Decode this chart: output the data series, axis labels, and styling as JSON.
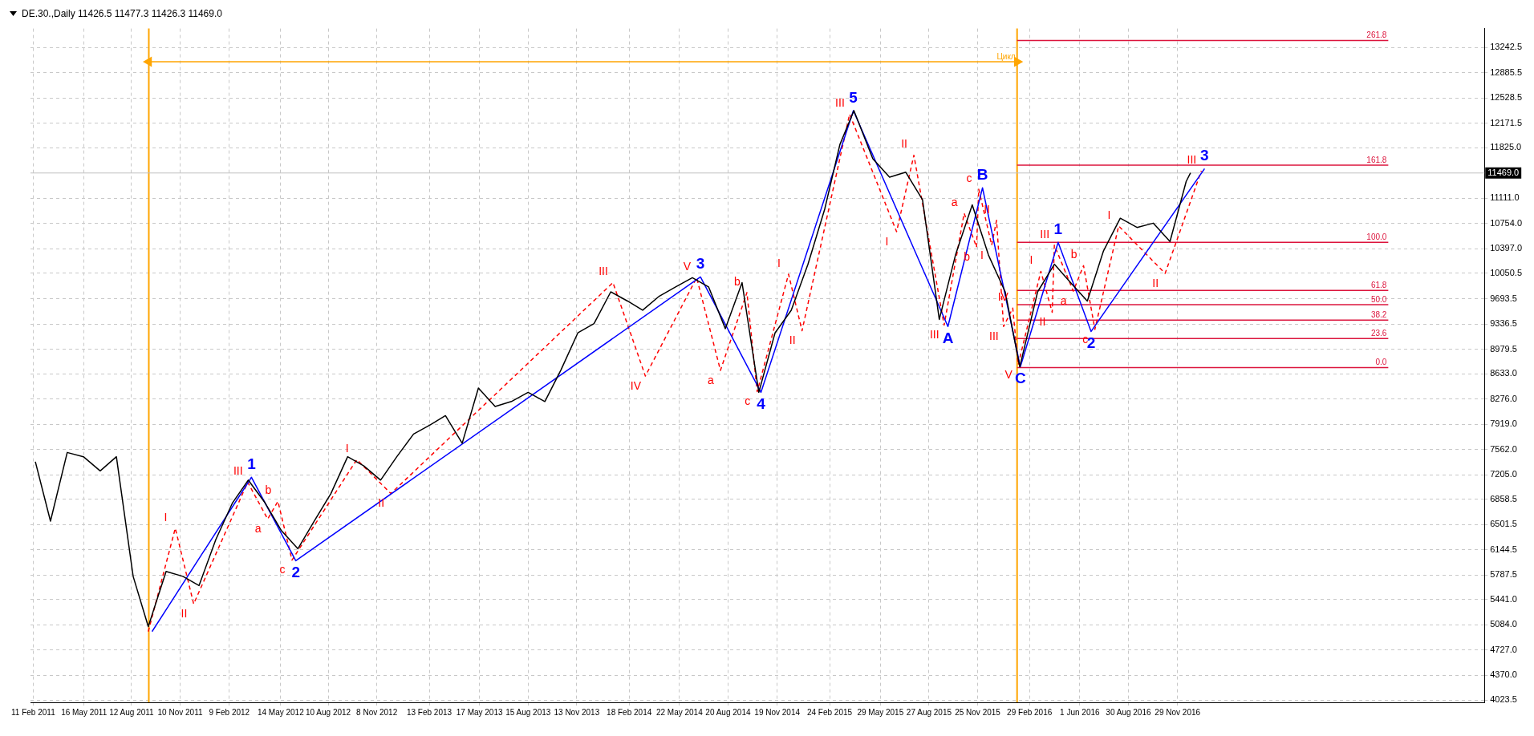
{
  "chart_data": {
    "type": "line",
    "title": "DE.30.,Daily  11426.5 11477.3 11426.3 11469.0",
    "xlim": [
      "2011-02-06",
      "2018-06-20"
    ],
    "xticks": [
      {
        "value": "2011-02-11",
        "label": "11 Feb 2011"
      },
      {
        "value": "2011-05-16",
        "label": "16 May 2011"
      },
      {
        "value": "2011-08-12",
        "label": "12 Aug 2011"
      },
      {
        "value": "2011-11-10",
        "label": "10 Nov 2011"
      },
      {
        "value": "2012-02-09",
        "label": "9 Feb 2012"
      },
      {
        "value": "2012-05-14",
        "label": "14 May 2012"
      },
      {
        "value": "2012-08-10",
        "label": "10 Aug 2012"
      },
      {
        "value": "2012-11-08",
        "label": "8 Nov 2012"
      },
      {
        "value": "2013-02-13",
        "label": "13 Feb 2013"
      },
      {
        "value": "2013-05-17",
        "label": "17 May 2013"
      },
      {
        "value": "2013-08-15",
        "label": "15 Aug 2013"
      },
      {
        "value": "2013-11-13",
        "label": "13 Nov 2013"
      },
      {
        "value": "2014-02-18",
        "label": "18 Feb 2014"
      },
      {
        "value": "2014-05-22",
        "label": "22 May 2014"
      },
      {
        "value": "2014-08-20",
        "label": "20 Aug 2014"
      },
      {
        "value": "2014-11-19",
        "label": "19 Nov 2014"
      },
      {
        "value": "2015-02-24",
        "label": "24 Feb 2015"
      },
      {
        "value": "2015-05-29",
        "label": "29 May 2015"
      },
      {
        "value": "2015-08-27",
        "label": "27 Aug 2015"
      },
      {
        "value": "2015-11-25",
        "label": "25 Nov 2015"
      },
      {
        "value": "2016-02-29",
        "label": "29 Feb 2016"
      },
      {
        "value": "2016-06-01",
        "label": "1 Jun 2016"
      },
      {
        "value": "2016-08-30",
        "label": "30 Aug 2016"
      },
      {
        "value": "2016-11-29",
        "label": "29 Nov 2016"
      }
    ],
    "ylim": [
      3990,
      13510
    ],
    "yticks": [
      13242.5,
      12885.5,
      12528.5,
      12171.5,
      {
        "value": 11825,
        "label": "11825.0"
      },
      {
        "value": 11111,
        "label": "11111.0"
      },
      {
        "value": 10754,
        "label": "10754.0"
      },
      {
        "value": 10397,
        "label": "10397.0"
      },
      10050.5,
      9693.5,
      9336.5,
      8979.5,
      {
        "value": 8633,
        "label": "8633.0"
      },
      {
        "value": 8276,
        "label": "8276.0"
      },
      {
        "value": 7919,
        "label": "7919.0"
      },
      {
        "value": 7562,
        "label": "7562.0"
      },
      {
        "value": 7205,
        "label": "7205.0"
      },
      6858.5,
      6501.5,
      6144.5,
      5787.5,
      {
        "value": 5441,
        "label": "5441.0"
      },
      {
        "value": 5084,
        "label": "5084.0"
      },
      {
        "value": 4727,
        "label": "4727.0"
      },
      {
        "value": 4370,
        "label": "4370.0"
      },
      4023.5
    ],
    "grid": true,
    "legend": false,
    "marker": "none",
    "series": [
      {
        "color": "#000000",
        "x": [
          "2011-02-15",
          "2011-03-15",
          "2011-04-15",
          "2011-05-15",
          "2011-06-15",
          "2011-07-15",
          "2011-08-15",
          "2011-09-12",
          "2011-10-15",
          "2011-11-15",
          "2011-12-15",
          "2012-01-15",
          "2012-02-15",
          "2012-03-15",
          "2012-04-15",
          "2012-05-15",
          "2012-06-15",
          "2012-07-15",
          "2012-08-15",
          "2012-09-15",
          "2012-10-15",
          "2012-11-15",
          "2012-12-15",
          "2013-01-15",
          "2013-02-15",
          "2013-03-15",
          "2013-04-15",
          "2013-05-15",
          "2013-06-15",
          "2013-07-15",
          "2013-08-15",
          "2013-09-15",
          "2013-10-15",
          "2013-11-15",
          "2013-12-15",
          "2014-01-15",
          "2014-02-15",
          "2014-03-15",
          "2014-04-15",
          "2014-05-15",
          "2014-06-15",
          "2014-07-15",
          "2014-08-15",
          "2014-09-15",
          "2014-10-16",
          "2014-11-15",
          "2014-12-15",
          "2015-01-15",
          "2015-02-15",
          "2015-03-15",
          "2015-04-10",
          "2015-05-15",
          "2015-06-15",
          "2015-07-15",
          "2015-08-15",
          "2015-09-15",
          "2015-10-15",
          "2015-11-15",
          "2015-12-15",
          "2016-01-15",
          "2016-02-11",
          "2016-03-15",
          "2016-04-15",
          "2016-05-15",
          "2016-06-15",
          "2016-07-15",
          "2016-08-15",
          "2016-09-15",
          "2016-10-15",
          "2016-11-15",
          "2016-12-15",
          "2016-12-23"
        ],
        "values": [
          7390,
          6550,
          7520,
          7460,
          7260,
          7460,
          5770,
          5060,
          5840,
          5770,
          5640,
          6290,
          6810,
          7130,
          6810,
          6420,
          6160,
          6550,
          6940,
          7460,
          7330,
          7130,
          7460,
          7780,
          7910,
          8040,
          7650,
          8430,
          8170,
          8240,
          8370,
          8240,
          8690,
          9210,
          9340,
          9790,
          9660,
          9530,
          9730,
          9860,
          9990,
          9860,
          9270,
          9920,
          8370,
          9210,
          9530,
          10180,
          10960,
          11870,
          12350,
          11670,
          11410,
          11480,
          11090,
          9400,
          10310,
          11020,
          10310,
          9790,
          8730,
          9790,
          10180,
          9920,
          9660,
          10370,
          10830,
          10700,
          10760,
          10500,
          11350,
          11470
        ]
      },
      {
        "color": "#0000ff",
        "x": [
          "2011-09-19",
          "2012-03-21",
          "2012-06-11",
          "2014-06-30",
          "2014-10-20",
          "2015-04-09",
          "2015-10-01",
          "2015-12-04",
          "2016-02-12",
          "2016-04-22",
          "2016-06-22",
          "2017-01-18"
        ],
        "values": [
          4990,
          7170,
          5990,
          10000,
          8370,
          12350,
          9300,
          11260,
          8730,
          10490,
          9230,
          11530
        ]
      },
      {
        "color": "#ff0000",
        "line_style": "dashed",
        "x": [
          "2011-09-12",
          "2011-11-01",
          "2011-12-05",
          "2012-03-14",
          "2012-04-20",
          "2012-05-09",
          "2012-06-04",
          "2012-10-02",
          "2012-12-04",
          "2014-01-19",
          "2014-03-20",
          "2014-06-23",
          "2014-08-06",
          "2014-09-24",
          "2014-10-13",
          "2014-12-10",
          "2015-01-04",
          "2015-04-02",
          "2015-06-28",
          "2015-07-30",
          "2015-09-24",
          "2015-10-31",
          "2015-11-23",
          "2015-11-27",
          "2015-12-21",
          "2015-12-30",
          "2016-01-12",
          "2016-01-29",
          "2016-02-08",
          "2016-03-21",
          "2016-04-11",
          "2016-04-15",
          "2016-05-20",
          "2016-06-08",
          "2016-06-29",
          "2016-08-12",
          "2016-11-06",
          "2017-01-12"
        ],
        "values": [
          4990,
          6450,
          5380,
          7100,
          6580,
          6830,
          6000,
          7420,
          6940,
          9920,
          8600,
          9990,
          8680,
          9780,
          8380,
          10040,
          9240,
          12300,
          10640,
          11720,
          9320,
          10900,
          10420,
          11240,
          10450,
          10800,
          9300,
          9560,
          8760,
          10080,
          9500,
          10450,
          9800,
          10160,
          9260,
          10720,
          10050,
          11500
        ]
      },
      {
        "name": "Цикл",
        "color": "#ffa500",
        "marker": "triangle",
        "x": [
          "2011-09-13",
          "2016-02-06"
        ],
        "values": [
          13040,
          13040
        ]
      },
      {
        "name": "261.8",
        "color": "#dc143c",
        "x": [
          "2016-02-06",
          "2017-12-24"
        ],
        "values": [
          13340,
          13340
        ]
      },
      {
        "name": "161.8",
        "color": "#dc143c",
        "x": [
          "2016-02-06",
          "2017-12-24"
        ],
        "values": [
          11580,
          11580
        ]
      },
      {
        "name": "100.0",
        "color": "#dc143c",
        "x": [
          "2016-02-06",
          "2017-12-24"
        ],
        "values": [
          10490,
          10490
        ]
      },
      {
        "name": "61.8",
        "color": "#dc143c",
        "x": [
          "2016-02-06",
          "2017-12-24"
        ],
        "values": [
          9810,
          9810
        ]
      },
      {
        "name": "50.0",
        "color": "#dc143c",
        "x": [
          "2016-02-06",
          "2017-12-24"
        ],
        "values": [
          9610,
          9610
        ]
      },
      {
        "name": "38.2",
        "color": "#dc143c",
        "x": [
          "2016-02-06",
          "2017-12-24"
        ],
        "values": [
          9390,
          9390
        ]
      },
      {
        "name": "23.6",
        "color": "#dc143c",
        "x": [
          "2016-02-06",
          "2017-12-24"
        ],
        "values": [
          9130,
          9130
        ]
      },
      {
        "name": "0.0",
        "color": "#dc143c",
        "x": [
          "2016-02-06",
          "2017-12-24"
        ],
        "values": [
          8720,
          8720
        ]
      }
    ],
    "ref_lines": [
      {
        "axis": "x",
        "value": "2011-09-13",
        "color": "#ffa500"
      },
      {
        "axis": "x",
        "value": "2016-02-06",
        "color": "#ffa500"
      },
      {
        "axis": "y",
        "value": 11469,
        "label": "11469.0",
        "color": "#c0c0c0"
      }
    ],
    "annotations": [
      {
        "text": "1",
        "x": "2012-03-21",
        "y": 7170
      },
      {
        "text": "2",
        "x": "2012-06-11",
        "y": 5990
      },
      {
        "text": "3",
        "x": "2014-06-30",
        "y": 10000
      },
      {
        "text": "4",
        "x": "2014-10-20",
        "y": 8370
      },
      {
        "text": "5",
        "x": "2015-04-09",
        "y": 12350
      },
      {
        "text": "A",
        "x": "2015-10-01",
        "y": 9300
      },
      {
        "text": "B",
        "x": "2015-12-04",
        "y": 11260
      },
      {
        "text": "C",
        "x": "2016-02-12",
        "y": 8730
      },
      {
        "text": "1",
        "x": "2016-04-22",
        "y": 10490
      },
      {
        "text": "2",
        "x": "2016-06-22",
        "y": 9230
      },
      {
        "text": "3",
        "x": "2017-01-18",
        "y": 11530
      },
      {
        "text": "I",
        "x": "2011-11-01",
        "y": 6450
      },
      {
        "text": "II",
        "x": "2011-12-05",
        "y": 5380
      },
      {
        "text": "III",
        "x": "2012-03-14",
        "y": 7100
      },
      {
        "text": "a",
        "x": "2012-04-20",
        "y": 6580
      },
      {
        "text": "b",
        "x": "2012-05-09",
        "y": 6830
      },
      {
        "text": "c",
        "x": "2012-06-04",
        "y": 6000
      },
      {
        "text": "I",
        "x": "2012-10-02",
        "y": 7420
      },
      {
        "text": "II",
        "x": "2012-12-04",
        "y": 6940
      },
      {
        "text": "III",
        "x": "2014-01-19",
        "y": 9920
      },
      {
        "text": "IV",
        "x": "2014-03-20",
        "y": 8600
      },
      {
        "text": "V",
        "x": "2014-06-23",
        "y": 9990
      },
      {
        "text": "a",
        "x": "2014-08-06",
        "y": 8680
      },
      {
        "text": "b",
        "x": "2014-09-24",
        "y": 9780
      },
      {
        "text": "c",
        "x": "2014-10-13",
        "y": 8380
      },
      {
        "text": "I",
        "x": "2014-12-10",
        "y": 10040
      },
      {
        "text": "II",
        "x": "2015-01-04",
        "y": 9240
      },
      {
        "text": "III",
        "x": "2015-04-02",
        "y": 12300
      },
      {
        "text": "I",
        "x": "2015-06-28",
        "y": 10640
      },
      {
        "text": "II",
        "x": "2015-07-30",
        "y": 11720
      },
      {
        "text": "III",
        "x": "2015-09-24",
        "y": 9320
      },
      {
        "text": "a",
        "x": "2015-10-31",
        "y": 10900
      },
      {
        "text": "b",
        "x": "2015-11-23",
        "y": 10420
      },
      {
        "text": "c",
        "x": "2015-11-27",
        "y": 11240
      },
      {
        "text": "I",
        "x": "2015-12-21",
        "y": 10450
      },
      {
        "text": "II",
        "x": "2015-12-30",
        "y": 10800
      },
      {
        "text": "III",
        "x": "2016-01-12",
        "y": 9300
      },
      {
        "text": "IV",
        "x": "2016-01-29",
        "y": 9560
      },
      {
        "text": "V",
        "x": "2016-02-08",
        "y": 8760
      },
      {
        "text": "I",
        "x": "2016-03-21",
        "y": 10080
      },
      {
        "text": "II",
        "x": "2016-04-11",
        "y": 9500
      },
      {
        "text": "III",
        "x": "2016-04-15",
        "y": 10450
      },
      {
        "text": "a",
        "x": "2016-05-20",
        "y": 9800
      },
      {
        "text": "b",
        "x": "2016-06-08",
        "y": 10160
      },
      {
        "text": "c",
        "x": "2016-06-29",
        "y": 9260
      },
      {
        "text": "I",
        "x": "2016-08-12",
        "y": 10720
      },
      {
        "text": "II",
        "x": "2016-11-06",
        "y": 10050
      },
      {
        "text": "III",
        "x": "2017-01-12",
        "y": 11500
      }
    ]
  }
}
